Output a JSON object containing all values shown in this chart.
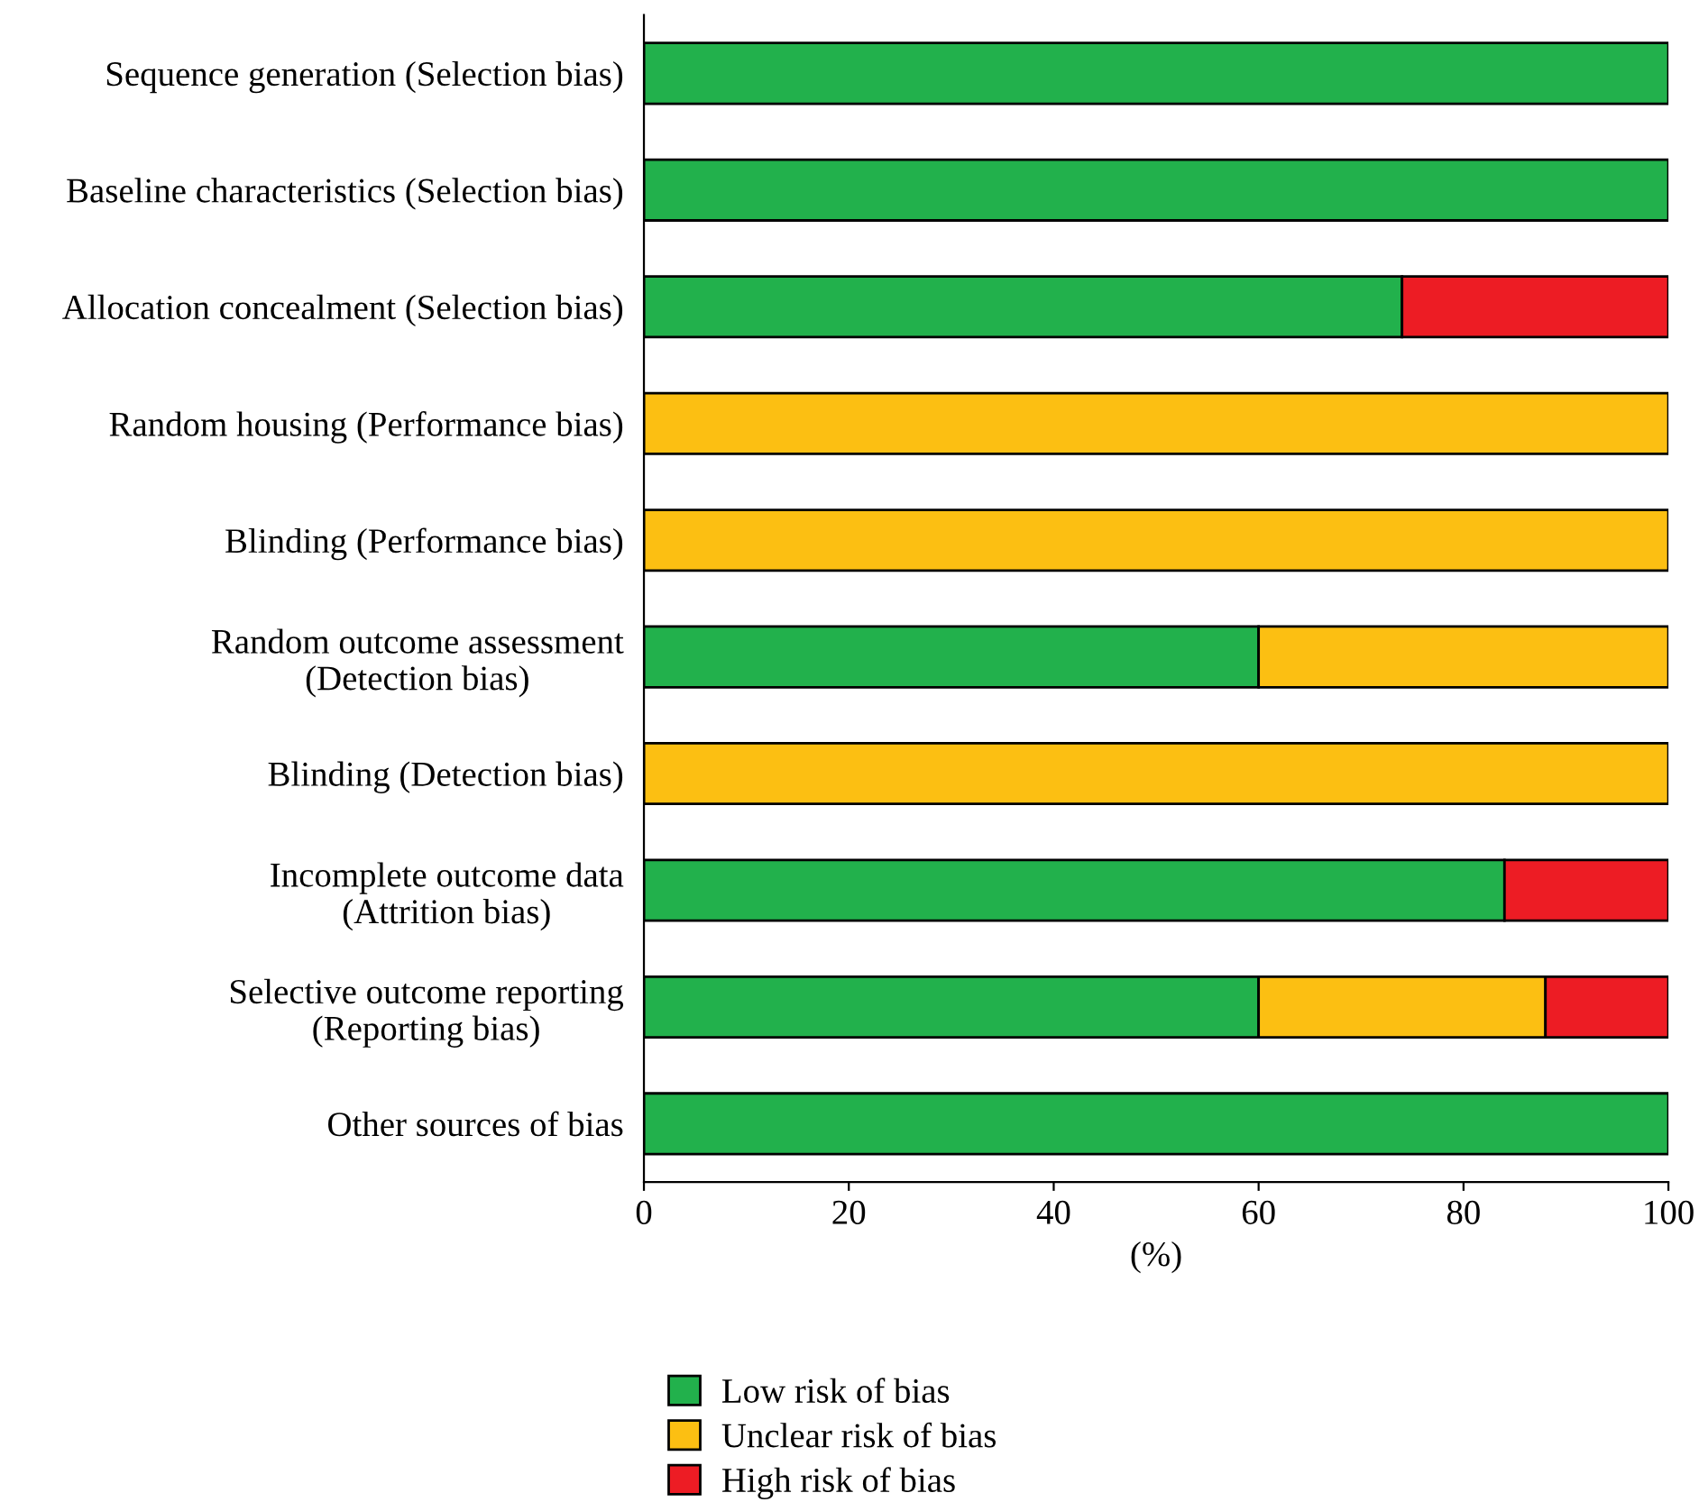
{
  "chart_data": {
    "type": "bar",
    "orientation": "horizontal",
    "stacked": true,
    "categories": [
      "Sequence generation (Selection bias)",
      "Baseline characteristics (Selection bias)",
      "Allocation concealment (Selection bias)",
      "Random housing (Performance bias)",
      "Blinding (Performance bias)",
      "Random outcome assessment\n(Detection bias)",
      "Blinding (Detection bias)",
      "Incomplete outcome data\n(Attrition bias)",
      "Selective outcome reporting\n(Reporting bias)",
      "Other sources of bias"
    ],
    "series": [
      {
        "name": "Low risk of bias",
        "color": "#22b14c",
        "values": [
          100,
          100,
          74,
          null,
          null,
          60,
          null,
          84,
          60,
          100
        ]
      },
      {
        "name": "Unclear risk of bias",
        "color": "#fcbf12",
        "values": [
          null,
          null,
          null,
          100,
          100,
          40,
          100,
          null,
          28,
          null
        ]
      },
      {
        "name": "High risk of bias",
        "color": "#ed1c24",
        "values": [
          null,
          null,
          26,
          null,
          null,
          null,
          null,
          16,
          12,
          null
        ]
      }
    ],
    "xlabel": "(%)",
    "xlim": [
      0,
      100
    ],
    "xticks": [
      0,
      20,
      40,
      60,
      80,
      100
    ],
    "grid": false,
    "legend": "bottom"
  }
}
